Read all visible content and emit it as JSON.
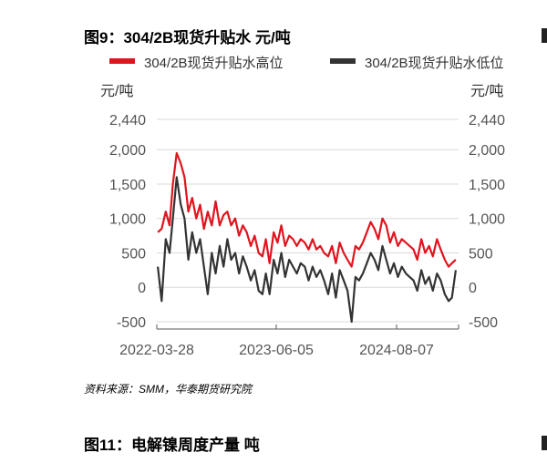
{
  "figure_title": "图9：304/2B现货升贴水  元/吨",
  "source_note": "资料来源：SMM，华泰期货研究院",
  "next_figure_title": "图11：电解镍周度产量  吨",
  "colors": {
    "high": "#e0141e",
    "low": "#333333",
    "grid": "#d9d9d9",
    "axis": "#595959"
  },
  "chart_data": {
    "type": "line",
    "title": "图9：304/2B现货升贴水  元/吨",
    "ylabel_left": "元/吨",
    "ylabel_right": "元/吨",
    "ylim": [
      -500,
      2440
    ],
    "yticks": [
      2440,
      2000,
      1500,
      1000,
      500,
      0,
      -500
    ],
    "ytick_labels": [
      "2,440",
      "2,000",
      "1,500",
      "1,000",
      "500",
      "0",
      "-500"
    ],
    "x_range": [
      "2022-01-01",
      "2025-03-31"
    ],
    "x_tick_labels": [
      "2022-03-28",
      "2023-06-05",
      "2024-08-07"
    ],
    "grid": true,
    "legend_position": "top",
    "series": [
      {
        "name": "304/2B现货升贴水高位",
        "color": "#e0141e",
        "x": [
          "2022-01-05",
          "2022-01-20",
          "2022-02-05",
          "2022-02-20",
          "2022-03-05",
          "2022-03-20",
          "2022-04-05",
          "2022-04-20",
          "2022-05-05",
          "2022-05-20",
          "2022-06-05",
          "2022-06-20",
          "2022-07-05",
          "2022-07-20",
          "2022-08-05",
          "2022-08-20",
          "2022-09-05",
          "2022-09-20",
          "2022-10-05",
          "2022-10-20",
          "2022-11-05",
          "2022-11-20",
          "2022-12-05",
          "2022-12-20",
          "2023-01-05",
          "2023-01-20",
          "2023-02-05",
          "2023-02-20",
          "2023-03-05",
          "2023-03-20",
          "2023-04-05",
          "2023-04-20",
          "2023-05-05",
          "2023-05-20",
          "2023-06-05",
          "2023-06-20",
          "2023-07-05",
          "2023-07-20",
          "2023-08-05",
          "2023-08-20",
          "2023-09-05",
          "2023-09-20",
          "2023-10-05",
          "2023-10-20",
          "2023-11-05",
          "2023-11-20",
          "2023-12-05",
          "2023-12-20",
          "2024-01-05",
          "2024-01-20",
          "2024-02-05",
          "2024-02-20",
          "2024-03-05",
          "2024-03-20",
          "2024-04-05",
          "2024-04-20",
          "2024-05-05",
          "2024-05-20",
          "2024-06-05",
          "2024-06-20",
          "2024-07-05",
          "2024-07-20",
          "2024-08-05",
          "2024-08-20",
          "2024-09-05",
          "2024-09-20",
          "2024-10-05",
          "2024-10-20",
          "2024-11-05",
          "2024-11-20",
          "2024-12-05",
          "2024-12-20",
          "2025-01-05",
          "2025-01-20",
          "2025-02-05",
          "2025-02-20",
          "2025-03-05",
          "2025-03-20"
        ],
        "values": [
          800,
          850,
          1100,
          900,
          1500,
          1950,
          1800,
          1600,
          1100,
          1300,
          1000,
          1200,
          850,
          1100,
          900,
          1250,
          900,
          1050,
          1100,
          900,
          1000,
          750,
          900,
          800,
          600,
          750,
          500,
          450,
          700,
          350,
          800,
          650,
          900,
          600,
          750,
          700,
          600,
          700,
          650,
          550,
          700,
          550,
          600,
          500,
          450,
          600,
          350,
          650,
          500,
          400,
          300,
          600,
          550,
          650,
          800,
          950,
          850,
          700,
          1000,
          900,
          650,
          800,
          600,
          700,
          650,
          600,
          550,
          400,
          700,
          500,
          600,
          450,
          700,
          550,
          400,
          300,
          350,
          400
        ]
      },
      {
        "name": "304/2B现货升贴水低位",
        "color": "#333333",
        "x": [
          "2022-01-05",
          "2022-01-20",
          "2022-02-05",
          "2022-02-20",
          "2022-03-05",
          "2022-03-20",
          "2022-04-05",
          "2022-04-20",
          "2022-05-05",
          "2022-05-20",
          "2022-06-05",
          "2022-06-20",
          "2022-07-05",
          "2022-07-20",
          "2022-08-05",
          "2022-08-20",
          "2022-09-05",
          "2022-09-20",
          "2022-10-05",
          "2022-10-20",
          "2022-11-05",
          "2022-11-20",
          "2022-12-05",
          "2022-12-20",
          "2023-01-05",
          "2023-01-20",
          "2023-02-05",
          "2023-02-20",
          "2023-03-05",
          "2023-03-20",
          "2023-04-05",
          "2023-04-20",
          "2023-05-05",
          "2023-05-20",
          "2023-06-05",
          "2023-06-20",
          "2023-07-05",
          "2023-07-20",
          "2023-08-05",
          "2023-08-20",
          "2023-09-05",
          "2023-09-20",
          "2023-10-05",
          "2023-10-20",
          "2023-11-05",
          "2023-11-20",
          "2023-12-05",
          "2023-12-20",
          "2024-01-05",
          "2024-01-20",
          "2024-02-05",
          "2024-02-20",
          "2024-03-05",
          "2024-03-20",
          "2024-04-05",
          "2024-04-20",
          "2024-05-05",
          "2024-05-20",
          "2024-06-05",
          "2024-06-20",
          "2024-07-05",
          "2024-07-20",
          "2024-08-05",
          "2024-08-20",
          "2024-09-05",
          "2024-09-20",
          "2024-10-05",
          "2024-10-20",
          "2024-11-05",
          "2024-11-20",
          "2024-12-05",
          "2024-12-20",
          "2025-01-05",
          "2025-01-20",
          "2025-02-05",
          "2025-02-20",
          "2025-03-05",
          "2025-03-20"
        ],
        "values": [
          300,
          -200,
          700,
          500,
          1000,
          1600,
          1200,
          1000,
          400,
          800,
          500,
          700,
          300,
          -100,
          500,
          200,
          600,
          300,
          700,
          400,
          500,
          200,
          450,
          300,
          100,
          250,
          -50,
          -100,
          200,
          -100,
          400,
          200,
          500,
          150,
          400,
          300,
          200,
          350,
          300,
          100,
          300,
          150,
          250,
          100,
          -100,
          200,
          -150,
          250,
          100,
          -50,
          -500,
          150,
          100,
          200,
          350,
          500,
          400,
          250,
          600,
          400,
          200,
          350,
          150,
          300,
          200,
          150,
          100,
          -50,
          250,
          50,
          150,
          -50,
          200,
          100,
          -100,
          -200,
          -150,
          250
        ]
      }
    ]
  }
}
